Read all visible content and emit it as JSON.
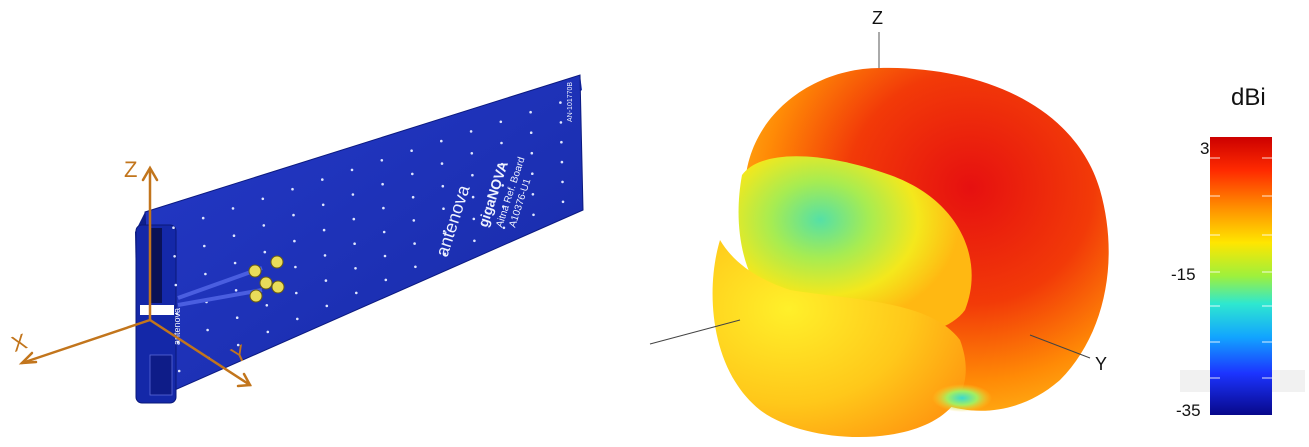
{
  "board": {
    "brand": "antenova",
    "product": "gigaNOVA",
    "subtitle": "Aitna  Ref.  Board",
    "part": "A10376-U1",
    "code": "AN-101770B",
    "edge_text": "antenova",
    "color": "#1b2fb8",
    "axis_color": "#c2751c",
    "axes": {
      "z": "Z",
      "x": "X",
      "y": "Y"
    }
  },
  "pattern": {
    "axes": {
      "z": "Z",
      "y": "Y"
    },
    "colors": {
      "high": "#e10a0a",
      "mid": "#ffd21e",
      "low": "#3dd7b0"
    }
  },
  "colorbar": {
    "unit": "dBi",
    "ticks": [
      "3",
      "-15",
      "-35"
    ],
    "range": [
      -35,
      3
    ],
    "stops": [
      "#cc0000",
      "#ff3b00",
      "#ff9a00",
      "#ffe000",
      "#a6f03c",
      "#36e6c8",
      "#10a8ff",
      "#1a3cff",
      "#0a0a8c"
    ]
  }
}
